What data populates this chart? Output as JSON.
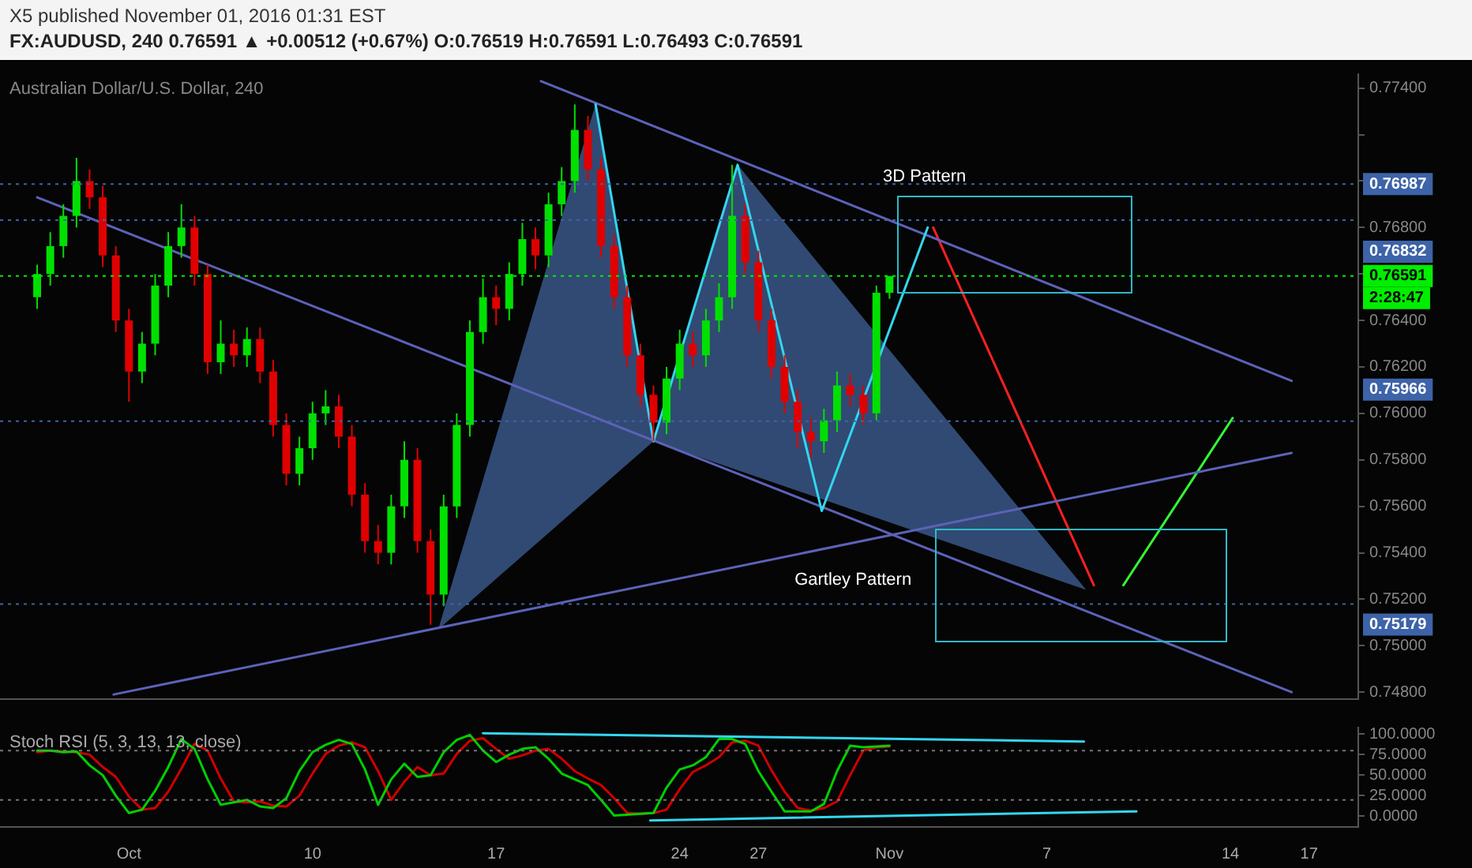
{
  "chart_data": [
    {
      "type": "candlestick",
      "title": "X5 published November 01, 2016 01:31 EST",
      "subtitle": "FX:AUDUSD, 240 0.76591 ▲ +0.00512 (+0.67%) O:0.76519 H:0.76591 L:0.76493 C:0.76591",
      "x": [
        "2016-09-29T12:00",
        "2016-09-30T00:00",
        "2016-09-30T12:00",
        "2016-10-01T00:00",
        "2016-10-01T12:00",
        "2016-10-02T00:00",
        "2016-10-02T12:00",
        "2016-10-03T00:00",
        "2016-10-03T12:00",
        "2016-10-04T00:00",
        "2016-10-04T12:00",
        "2016-10-05T00:00",
        "2016-10-05T12:00",
        "2016-10-06T00:00",
        "2016-10-06T12:00",
        "2016-10-07T00:00",
        "2016-10-07T12:00",
        "2016-10-08T00:00",
        "2016-10-08T12:00",
        "2016-10-09T00:00",
        "2016-10-09T12:00",
        "2016-10-10T00:00",
        "2016-10-10T12:00",
        "2016-10-11T00:00",
        "2016-10-11T12:00",
        "2016-10-12T00:00",
        "2016-10-12T12:00",
        "2016-10-13T00:00",
        "2016-10-13T12:00",
        "2016-10-14T00:00",
        "2016-10-14T12:00",
        "2016-10-15T00:00",
        "2016-10-15T12:00",
        "2016-10-16T00:00",
        "2016-10-16T12:00",
        "2016-10-17T00:00",
        "2016-10-17T12:00",
        "2016-10-18T00:00",
        "2016-10-18T12:00",
        "2016-10-19T00:00",
        "2016-10-19T12:00",
        "2016-10-20T00:00",
        "2016-10-20T12:00",
        "2016-10-21T00:00",
        "2016-10-21T12:00",
        "2016-10-22T00:00",
        "2016-10-22T12:00",
        "2016-10-23T00:00",
        "2016-10-23T12:00",
        "2016-10-24T00:00",
        "2016-10-24T12:00",
        "2016-10-25T00:00",
        "2016-10-25T12:00",
        "2016-10-26T00:00",
        "2016-10-26T12:00",
        "2016-10-27T00:00",
        "2016-10-27T12:00",
        "2016-10-28T00:00",
        "2016-10-28T12:00",
        "2016-10-29T00:00",
        "2016-10-29T12:00",
        "2016-10-30T00:00",
        "2016-10-30T12:00",
        "2016-10-31T00:00",
        "2016-10-31T12:00",
        "2016-11-01T00:00"
      ],
      "ohlc": [
        [
          0.765,
          0.7664,
          0.7645,
          0.766
        ],
        [
          0.766,
          0.7678,
          0.7655,
          0.7672
        ],
        [
          0.7672,
          0.769,
          0.7667,
          0.7685
        ],
        [
          0.7685,
          0.771,
          0.768,
          0.77
        ],
        [
          0.77,
          0.7705,
          0.7688,
          0.7693
        ],
        [
          0.7693,
          0.7698,
          0.7663,
          0.7668
        ],
        [
          0.7668,
          0.7672,
          0.7635,
          0.764
        ],
        [
          0.764,
          0.7645,
          0.7605,
          0.7618
        ],
        [
          0.7618,
          0.7635,
          0.7613,
          0.763
        ],
        [
          0.763,
          0.766,
          0.7625,
          0.7655
        ],
        [
          0.7655,
          0.7678,
          0.765,
          0.7672
        ],
        [
          0.7672,
          0.769,
          0.7667,
          0.768
        ],
        [
          0.768,
          0.7685,
          0.7655,
          0.766
        ],
        [
          0.766,
          0.7664,
          0.7617,
          0.7622
        ],
        [
          0.7622,
          0.764,
          0.7617,
          0.763
        ],
        [
          0.763,
          0.7636,
          0.762,
          0.7625
        ],
        [
          0.7625,
          0.7637,
          0.762,
          0.7632
        ],
        [
          0.7632,
          0.7637,
          0.7613,
          0.7618
        ],
        [
          0.7618,
          0.7623,
          0.759,
          0.7595
        ],
        [
          0.7595,
          0.76,
          0.7569,
          0.7574
        ],
        [
          0.7574,
          0.759,
          0.7569,
          0.7585
        ],
        [
          0.7585,
          0.7605,
          0.758,
          0.76
        ],
        [
          0.76,
          0.761,
          0.7595,
          0.7603
        ],
        [
          0.7603,
          0.7608,
          0.7585,
          0.759
        ],
        [
          0.759,
          0.7595,
          0.756,
          0.7565
        ],
        [
          0.7565,
          0.757,
          0.754,
          0.7545
        ],
        [
          0.7545,
          0.7552,
          0.7535,
          0.754
        ],
        [
          0.754,
          0.7565,
          0.7535,
          0.756
        ],
        [
          0.756,
          0.7588,
          0.7555,
          0.758
        ],
        [
          0.758,
          0.7585,
          0.754,
          0.7545
        ],
        [
          0.7545,
          0.755,
          0.7509,
          0.7522
        ],
        [
          0.7522,
          0.7565,
          0.7517,
          0.756
        ],
        [
          0.756,
          0.76,
          0.7555,
          0.7595
        ],
        [
          0.7595,
          0.764,
          0.759,
          0.7635
        ],
        [
          0.7635,
          0.7658,
          0.763,
          0.765
        ],
        [
          0.765,
          0.7655,
          0.7638,
          0.7645
        ],
        [
          0.7645,
          0.7665,
          0.764,
          0.766
        ],
        [
          0.766,
          0.7682,
          0.7655,
          0.7675
        ],
        [
          0.7675,
          0.768,
          0.7662,
          0.7668
        ],
        [
          0.7668,
          0.7695,
          0.7663,
          0.769
        ],
        [
          0.769,
          0.7706,
          0.7685,
          0.77
        ],
        [
          0.77,
          0.7733,
          0.7695,
          0.7722
        ],
        [
          0.7722,
          0.7728,
          0.77,
          0.7705
        ],
        [
          0.7705,
          0.771,
          0.7667,
          0.7672
        ],
        [
          0.7672,
          0.7677,
          0.7645,
          0.765
        ],
        [
          0.765,
          0.7655,
          0.762,
          0.7625
        ],
        [
          0.7625,
          0.763,
          0.7603,
          0.7608
        ],
        [
          0.7608,
          0.7612,
          0.7588,
          0.7596
        ],
        [
          0.7596,
          0.762,
          0.7591,
          0.7615
        ],
        [
          0.7615,
          0.7636,
          0.761,
          0.763
        ],
        [
          0.763,
          0.7635,
          0.762,
          0.7625
        ],
        [
          0.7625,
          0.7645,
          0.762,
          0.764
        ],
        [
          0.764,
          0.7656,
          0.7635,
          0.765
        ],
        [
          0.765,
          0.7707,
          0.7645,
          0.7685
        ],
        [
          0.7685,
          0.769,
          0.766,
          0.7665
        ],
        [
          0.7665,
          0.767,
          0.7635,
          0.764
        ],
        [
          0.764,
          0.7645,
          0.7615,
          0.762
        ],
        [
          0.762,
          0.7625,
          0.76,
          0.7605
        ],
        [
          0.7605,
          0.761,
          0.7585,
          0.7592
        ],
        [
          0.7592,
          0.7598,
          0.7581,
          0.7588
        ],
        [
          0.7588,
          0.7602,
          0.7583,
          0.7597
        ],
        [
          0.7597,
          0.7618,
          0.7592,
          0.7612
        ],
        [
          0.7612,
          0.7617,
          0.7603,
          0.7608
        ],
        [
          0.7608,
          0.7612,
          0.7595,
          0.76
        ],
        [
          0.76,
          0.7655,
          0.7597,
          0.76519
        ],
        [
          0.76519,
          0.76591,
          0.76493,
          0.76591
        ]
      ],
      "colors": [
        "#00e000",
        "#00e000",
        "#00e000",
        "#00e000",
        "#e00000",
        "#e00000",
        "#e00000",
        "#e00000",
        "#00e000",
        "#00e000",
        "#00e000",
        "#00e000",
        "#e00000",
        "#e00000",
        "#00e000",
        "#e00000",
        "#00e000",
        "#e00000",
        "#e00000",
        "#e00000",
        "#00e000",
        "#00e000",
        "#00e000",
        "#e00000",
        "#e00000",
        "#e00000",
        "#e00000",
        "#00e000",
        "#00e000",
        "#e00000",
        "#e00000",
        "#00e000",
        "#00e000",
        "#00e000",
        "#00e000",
        "#e00000",
        "#00e000",
        "#00e000",
        "#e00000",
        "#00e000",
        "#00e000",
        "#00e000",
        "#e00000",
        "#e00000",
        "#e00000",
        "#e00000",
        "#e00000",
        "#e00000",
        "#00e000",
        "#00e000",
        "#e00000",
        "#00e000",
        "#00e000",
        "#00e000",
        "#e00000",
        "#e00000",
        "#e00000",
        "#e00000",
        "#e00000",
        "#e00000",
        "#00e000",
        "#00e000",
        "#e00000",
        "#e00000",
        "#00e000",
        "#00e000"
      ],
      "series": [
        {
          "type": "area",
          "color": "#3c5b8e",
          "x": [
            "2016-10-14T19:00",
            "2016-10-20T19:00",
            "2016-10-23T00:00",
            "2016-10-26T05:00",
            "2016-11-08T12:00"
          ],
          "values": [
            0.7507,
            0.7733,
            0.7588,
            0.7707,
            0.7524
          ]
        },
        {
          "type": "line",
          "color": "#33d6f0",
          "x": [
            "2016-10-20T19:00",
            "2016-10-23T00:00",
            "2016-10-26T05:00",
            "2016-10-29T10:00",
            "2016-11-02T11:00"
          ],
          "values": [
            0.7733,
            0.7588,
            0.7707,
            0.7558,
            0.768
          ]
        },
        {
          "type": "line",
          "color": "#5c62b8",
          "x": [
            "2016-10-18T17:00",
            "2016-11-16T08:00"
          ],
          "values": [
            0.7743,
            0.7614
          ]
        },
        {
          "type": "line",
          "color": "#5c62b8",
          "x": [
            "2016-09-29T12:00",
            "2016-11-16T08:00"
          ],
          "values": [
            0.7693,
            0.748
          ]
        },
        {
          "type": "line",
          "color": "#5c62b8",
          "x": [
            "2016-10-02T10:00",
            "2016-11-16T08:00"
          ],
          "values": [
            0.7479,
            0.7583
          ]
        },
        {
          "type": "line",
          "color": "#ff2020",
          "x": [
            "2016-11-02T16:00",
            "2016-11-08T19:00"
          ],
          "values": [
            0.768,
            0.7526
          ]
        },
        {
          "type": "line",
          "color": "#33ff33",
          "x": [
            "2016-11-09T22:00",
            "2016-11-14T02:00"
          ],
          "values": [
            0.7526,
            0.7598
          ]
        }
      ],
      "xlim": [
        "2016-09-28T02:00",
        "2016-11-18T21:00"
      ],
      "ylim": [
        0.7477,
        0.7746
      ],
      "yticks": [
        {
          "value": 0.748,
          "label": "0.74800"
        },
        {
          "value": 0.75,
          "label": "0.75000"
        },
        {
          "value": 0.752,
          "label": "0.75200"
        },
        {
          "value": 0.754,
          "label": "0.75400"
        },
        {
          "value": 0.756,
          "label": "0.75600"
        },
        {
          "value": 0.758,
          "label": "0.75800"
        },
        {
          "value": 0.76,
          "label": "0.76000"
        },
        {
          "value": 0.762,
          "label": "0.76200"
        },
        {
          "value": 0.764,
          "label": "0.76400"
        },
        {
          "value": 0.766,
          "label": null
        },
        {
          "value": 0.768,
          "label": "0.76800"
        },
        {
          "value": 0.77,
          "label": null
        },
        {
          "value": 0.772,
          "label": null
        },
        {
          "value": 0.774,
          "label": "0.77400"
        }
      ],
      "tick_labels": "y",
      "ref_lines": [
        {
          "axis": "y",
          "value": 0.76987,
          "label": "0.76987",
          "color": "#3d63a8",
          "line_style": "dotted"
        },
        {
          "axis": "y",
          "value": 0.76832,
          "label": "0.76832",
          "color": "#3d63a8",
          "line_style": "dotted"
        },
        {
          "axis": "y",
          "value": 0.76591,
          "label": "0.76591\n2:28:47",
          "color": "#00ee00",
          "line_style": "dotted"
        },
        {
          "axis": "y",
          "value": 0.75966,
          "label": "0.75966",
          "color": "#3d63a8",
          "line_style": "dotted"
        },
        {
          "axis": "y",
          "value": 0.75179,
          "label": "0.75179",
          "color": "#3d63a8",
          "line_style": "dotted"
        }
      ],
      "annotations": [
        "Australian Dollar/U.S. Dollar, 240",
        {
          "text": "3D Pattern",
          "x": "2016-10-31T18:00",
          "y": 0.7698
        },
        "Gartley Pattern"
      ]
    },
    {
      "type": "line",
      "title": "Stoch RSI (5, 3, 13, 13, close)",
      "x": [
        "2016-09-29T12:00",
        "2016-09-30T00:00",
        "2016-09-30T12:00",
        "2016-10-01T00:00",
        "2016-10-01T12:00",
        "2016-10-02T00:00",
        "2016-10-02T12:00",
        "2016-10-03T00:00",
        "2016-10-03T12:00",
        "2016-10-04T00:00",
        "2016-10-04T12:00",
        "2016-10-05T00:00",
        "2016-10-05T12:00",
        "2016-10-06T00:00",
        "2016-10-06T12:00",
        "2016-10-07T00:00",
        "2016-10-07T12:00",
        "2016-10-08T00:00",
        "2016-10-08T12:00",
        "2016-10-09T00:00",
        "2016-10-09T12:00",
        "2016-10-10T00:00",
        "2016-10-10T12:00",
        "2016-10-11T00:00",
        "2016-10-11T12:00",
        "2016-10-12T00:00",
        "2016-10-12T12:00",
        "2016-10-13T00:00",
        "2016-10-13T12:00",
        "2016-10-14T00:00",
        "2016-10-14T12:00",
        "2016-10-15T00:00",
        "2016-10-15T12:00",
        "2016-10-16T00:00",
        "2016-10-16T12:00",
        "2016-10-17T00:00",
        "2016-10-17T12:00",
        "2016-10-18T00:00",
        "2016-10-18T12:00",
        "2016-10-19T00:00",
        "2016-10-19T12:00",
        "2016-10-20T00:00",
        "2016-10-20T12:00",
        "2016-10-21T00:00",
        "2016-10-21T12:00",
        "2016-10-22T00:00",
        "2016-10-22T12:00",
        "2016-10-23T00:00",
        "2016-10-23T12:00",
        "2016-10-24T00:00",
        "2016-10-24T12:00",
        "2016-10-25T00:00",
        "2016-10-25T12:00",
        "2016-10-26T00:00",
        "2016-10-26T12:00",
        "2016-10-27T00:00",
        "2016-10-27T12:00",
        "2016-10-28T00:00",
        "2016-10-28T12:00",
        "2016-10-29T00:00",
        "2016-10-29T12:00",
        "2016-10-30T00:00",
        "2016-10-30T12:00",
        "2016-10-31T00:00",
        "2016-10-31T12:00",
        "2016-11-01T00:00"
      ],
      "series": [
        {
          "color": "#00d000",
          "values": [
            80,
            80,
            78,
            79,
            62,
            50,
            25,
            4,
            8,
            31,
            60,
            94,
            82,
            45,
            14,
            17,
            20,
            12,
            10,
            22,
            55,
            78,
            87,
            93,
            88,
            57,
            14,
            45,
            64,
            48,
            50,
            78,
            93,
            99,
            80,
            66,
            75,
            82,
            84,
            70,
            52,
            45,
            38,
            20,
            1,
            2,
            3,
            4,
            35,
            57,
            62,
            72,
            94,
            94,
            88,
            55,
            30,
            6,
            6,
            6,
            15,
            55,
            86,
            84,
            85,
            86
          ]
        },
        {
          "color": "#d00000",
          "values": [
            78,
            80,
            79,
            78,
            75,
            60,
            48,
            24,
            8,
            10,
            30,
            58,
            88,
            80,
            46,
            18,
            17,
            18,
            13,
            12,
            25,
            52,
            76,
            86,
            90,
            84,
            55,
            20,
            42,
            60,
            50,
            52,
            76,
            92,
            95,
            82,
            70,
            74,
            80,
            82,
            70,
            55,
            46,
            38,
            22,
            4,
            3,
            4,
            8,
            33,
            54,
            62,
            72,
            90,
            92,
            86,
            56,
            30,
            10,
            7,
            10,
            18,
            50,
            80,
            84,
            85
          ]
        },
        {
          "type": "line",
          "color": "#33d6f0",
          "x": [
            "2016-10-16T12:00",
            "2016-11-08T10:00"
          ],
          "values": [
            101,
            91
          ]
        },
        {
          "type": "line",
          "color": "#33d6f0",
          "x": [
            "2016-10-22T21:00",
            "2016-11-10T10:00"
          ],
          "values": [
            -5,
            6
          ]
        }
      ],
      "xlim": [
        "2016-09-28T02:00",
        "2016-11-18T21:00"
      ],
      "xticks": [
        {
          "value": "2016-10-03",
          "label": "Oct"
        },
        {
          "value": "2016-10-10",
          "label": "10"
        },
        {
          "value": "2016-10-17",
          "label": "17"
        },
        {
          "value": "2016-10-24",
          "label": "24"
        },
        {
          "value": "2016-10-27",
          "label": "27"
        },
        {
          "value": "2016-11-01",
          "label": "Nov"
        },
        {
          "value": "2016-11-07",
          "label": "7"
        },
        {
          "value": "2016-11-14",
          "label": "14"
        },
        {
          "value": "2016-11-17",
          "label": "17"
        }
      ],
      "ylim": [
        -13,
        108
      ],
      "yticks": [
        {
          "value": 0,
          "label": "0.0000"
        },
        {
          "value": 25,
          "label": "25.0000"
        },
        {
          "value": 50,
          "label": "50.0000"
        },
        {
          "value": 75,
          "label": "75.0000"
        },
        {
          "value": 100,
          "label": "100.0000"
        }
      ],
      "ref_lines": [
        {
          "axis": "y",
          "value": 80,
          "color": "#777777",
          "line_style": "dotted"
        },
        {
          "axis": "y",
          "value": 20,
          "color": "#777777",
          "line_style": "dotted"
        }
      ]
    }
  ]
}
